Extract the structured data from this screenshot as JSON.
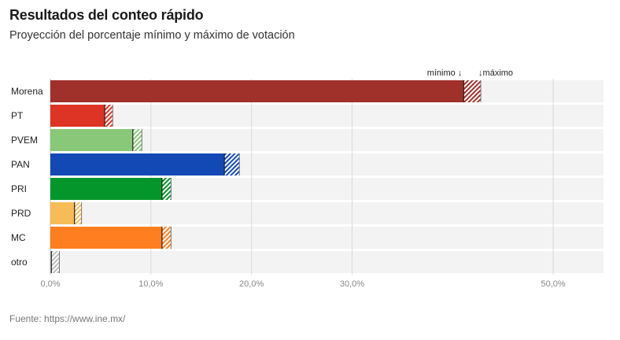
{
  "header": {
    "title": "Resultados del conteo rápido",
    "subtitle": "Proyección del porcentaje mínimo y máximo de votación"
  },
  "footer": {
    "source": "Fuente: https://www.ine.mx/"
  },
  "chart_data": {
    "type": "bar",
    "orientation": "horizontal",
    "title": "Resultados del conteo rápido",
    "subtitle": "Proyección del porcentaje mínimo y máximo de votación",
    "xlim": [
      0,
      55
    ],
    "xticks": [
      0,
      10,
      20,
      30,
      50
    ],
    "xtick_labels": [
      "0,0%",
      "10,0%",
      "20,0%",
      "30,0%",
      "50,0%"
    ],
    "legend": {
      "min_label": "mínimo ↓",
      "max_label": "↓máximo"
    },
    "categories": [
      "Morena",
      "PT",
      "PVEM",
      "PAN",
      "PRI",
      "PRD",
      "MC",
      "otro"
    ],
    "series": [
      {
        "name": "mínimo",
        "values": [
          41.1,
          5.4,
          8.2,
          17.3,
          11.1,
          2.4,
          11.1,
          0.1
        ]
      },
      {
        "name": "máximo",
        "values": [
          42.8,
          6.2,
          9.1,
          18.8,
          12.0,
          3.1,
          12.0,
          0.9
        ]
      }
    ],
    "colors": [
      "#a0302a",
      "#dd3425",
      "#88c878",
      "#1249b5",
      "#05962b",
      "#f7bb58",
      "#ff7e1f",
      "#bdbdbd"
    ],
    "grid": true
  }
}
